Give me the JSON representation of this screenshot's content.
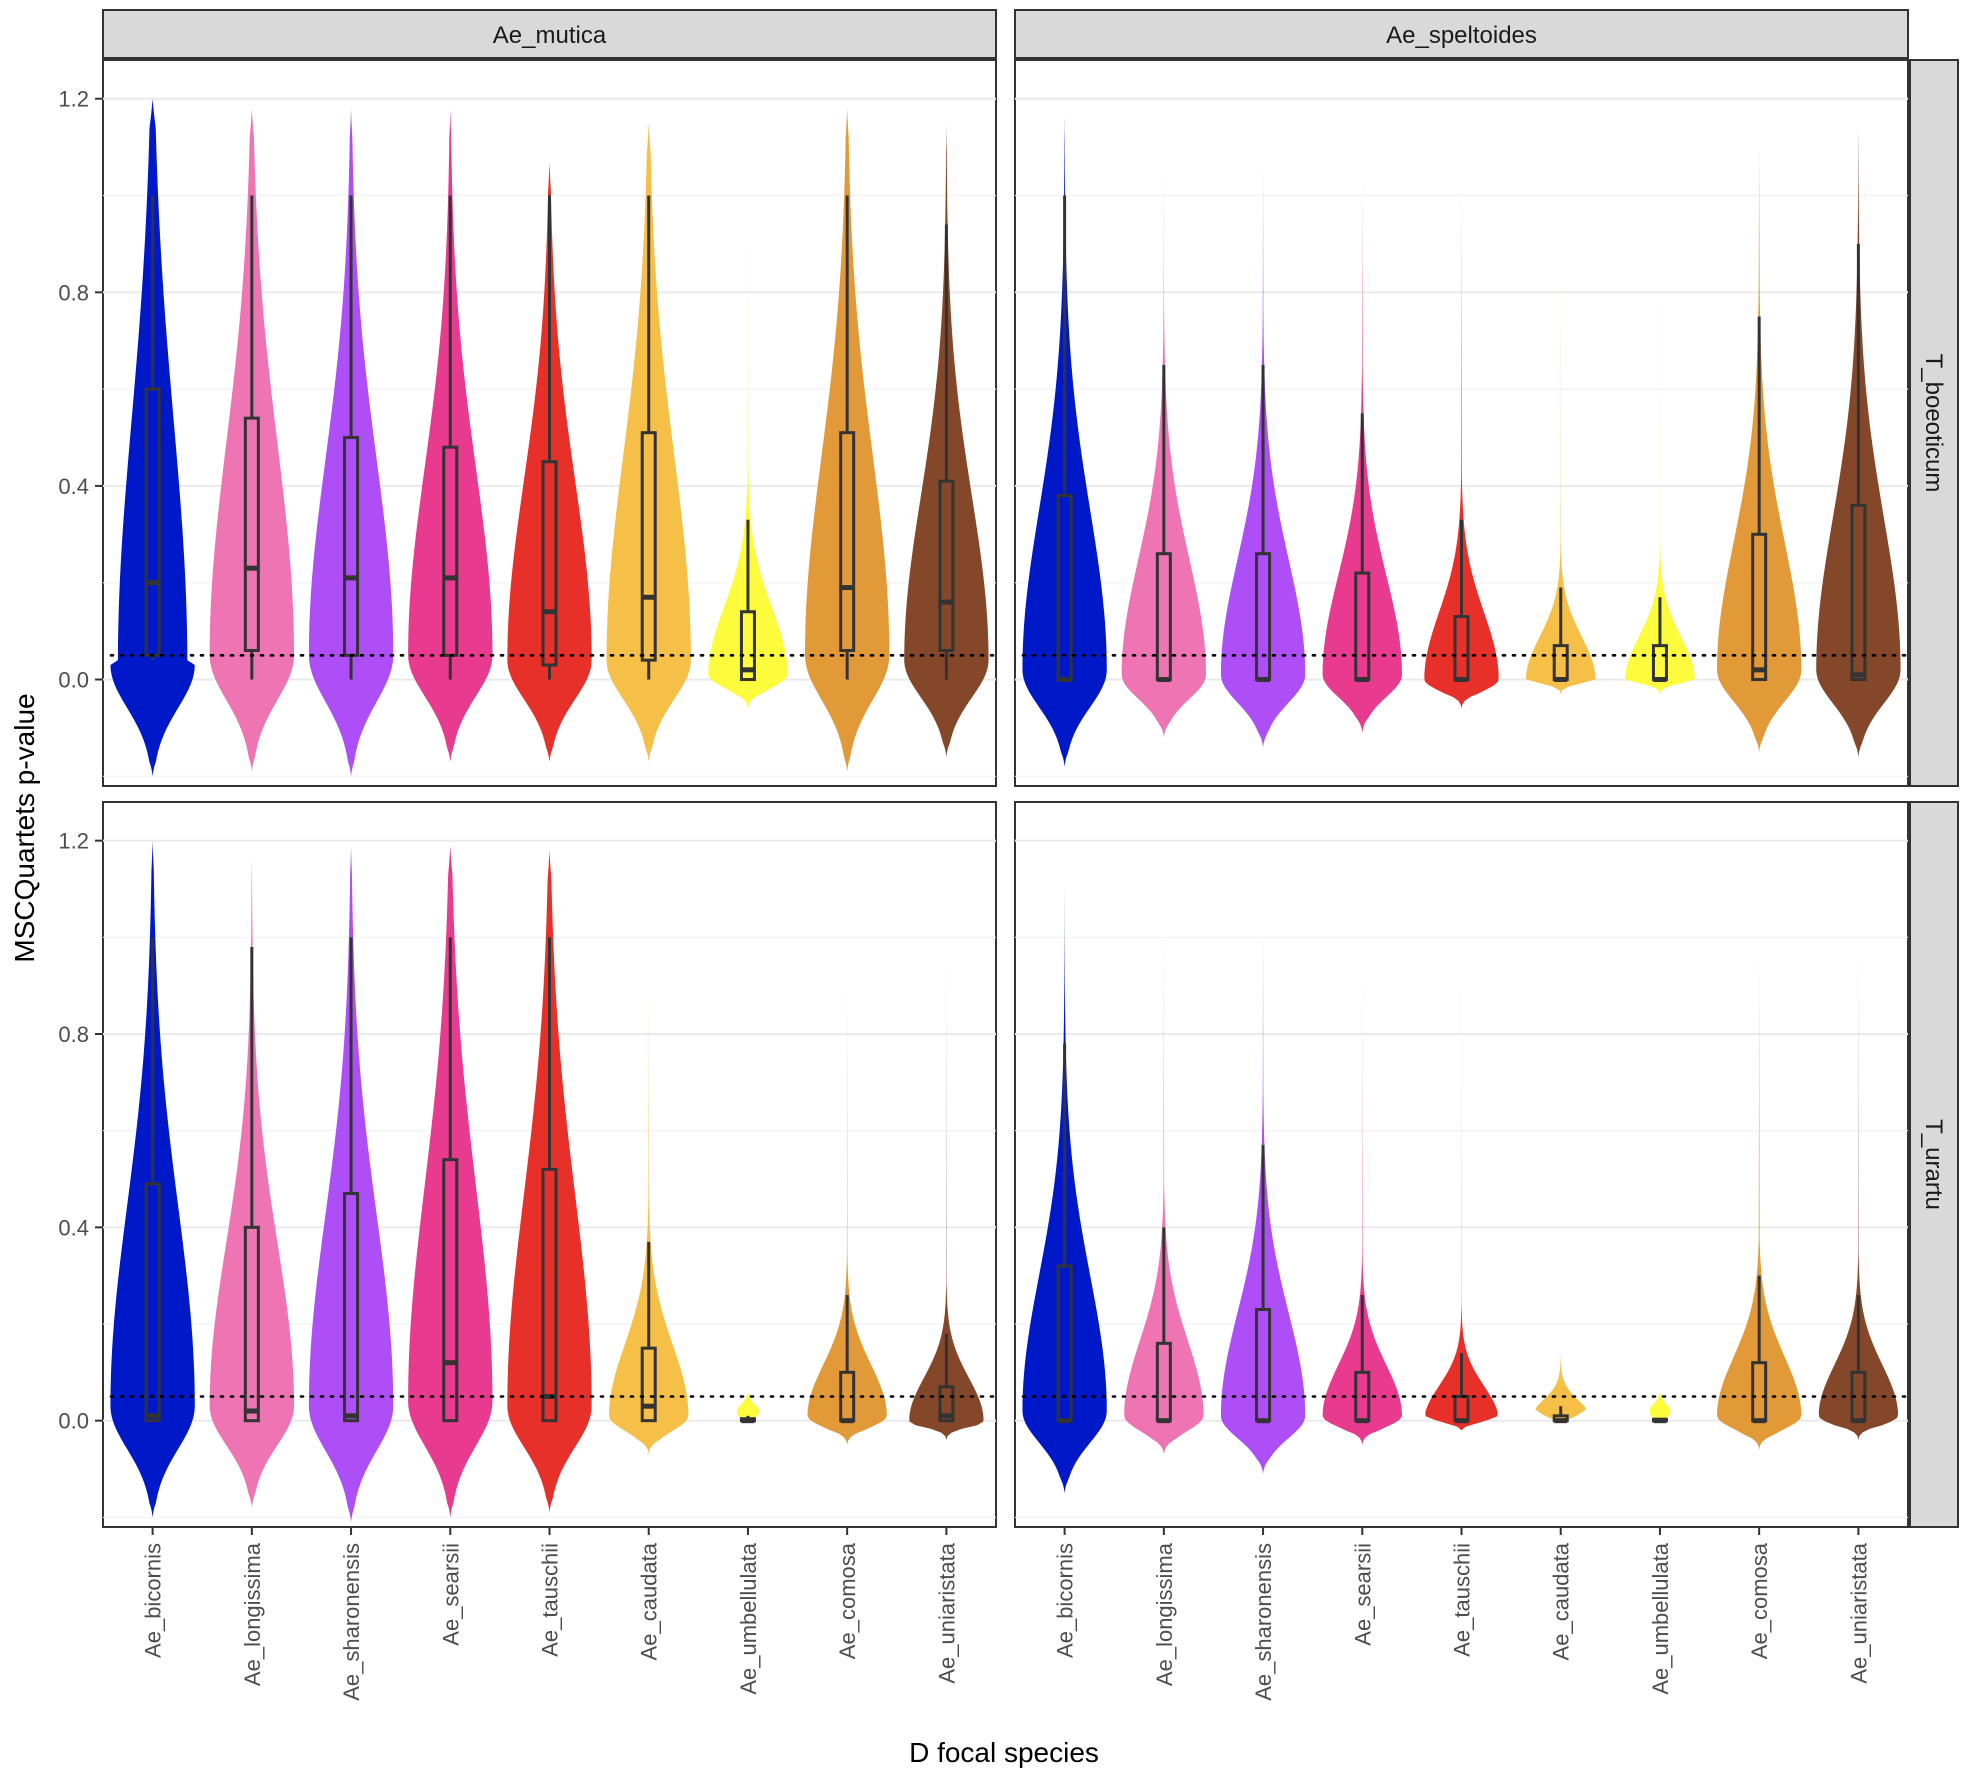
{
  "chart_data": {
    "type": "violin",
    "xlabel": "D focal species",
    "ylabel": "MSCQuartets p-value",
    "ylim": [
      -0.22,
      1.28
    ],
    "yticks": [
      0.0,
      0.4,
      0.8,
      1.2
    ],
    "ytick_labels": [
      "0.0",
      "0.4",
      "0.8",
      "1.2"
    ],
    "reference_line": 0.05,
    "grid": true,
    "categories": [
      "Ae_bicornis",
      "Ae_longissima",
      "Ae_sharonensis",
      "Ae_searsii",
      "Ae_tauschii",
      "Ae_caudata",
      "Ae_umbellulata",
      "Ae_comosa",
      "Ae_uniaristata"
    ],
    "colors": [
      "#0019c8",
      "#ee74b4",
      "#ad4ef6",
      "#e83a8e",
      "#e8302a",
      "#f6c048",
      "#fcfc3c",
      "#e29a38",
      "#84472a"
    ],
    "col_facets": [
      "Ae_mutica",
      "Ae_speltoides"
    ],
    "row_facets": [
      "T_boeoticum",
      "T_urartu"
    ],
    "panels": [
      {
        "col": "Ae_mutica",
        "row": "T_boeoticum",
        "violins": [
          {
            "min": -0.2,
            "max": 1.2,
            "mode": 0.03,
            "left_w": 0.85,
            "right_w": 0.7,
            "tail": 0.45,
            "lo": 0.04,
            "q1": 0.05,
            "median": 0.2,
            "q3": 0.6,
            "hi": 1.0
          },
          {
            "min": -0.19,
            "max": 1.18,
            "mode": 0.05,
            "left_w": 0.85,
            "right_w": 0.85,
            "tail": 0.25,
            "lo": 0.0,
            "q1": 0.06,
            "median": 0.23,
            "q3": 0.54,
            "hi": 1.0
          },
          {
            "min": -0.2,
            "max": 1.18,
            "mode": 0.05,
            "left_w": 0.85,
            "right_w": 0.85,
            "tail": 0.25,
            "lo": 0.0,
            "q1": 0.05,
            "median": 0.21,
            "q3": 0.5,
            "hi": 1.0
          },
          {
            "min": -0.17,
            "max": 1.18,
            "mode": 0.05,
            "left_w": 0.85,
            "right_w": 0.85,
            "tail": 0.2,
            "lo": 0.0,
            "q1": 0.05,
            "median": 0.21,
            "q3": 0.48,
            "hi": 1.0
          },
          {
            "min": -0.17,
            "max": 1.07,
            "mode": 0.04,
            "left_w": 0.85,
            "right_w": 0.85,
            "tail": 0.15,
            "lo": 0.0,
            "q1": 0.03,
            "median": 0.14,
            "q3": 0.45,
            "hi": 1.0
          },
          {
            "min": -0.17,
            "max": 1.15,
            "mode": 0.04,
            "left_w": 0.85,
            "right_w": 0.85,
            "tail": 0.15,
            "lo": 0.0,
            "q1": 0.04,
            "median": 0.17,
            "q3": 0.51,
            "hi": 1.0
          },
          {
            "min": -0.06,
            "max": 1.02,
            "mode": 0.01,
            "left_w": 0.8,
            "right_w": 0.8,
            "tail": 0.02,
            "lo": 0.0,
            "q1": 0.0,
            "median": 0.02,
            "q3": 0.14,
            "hi": 0.33
          },
          {
            "min": -0.19,
            "max": 1.18,
            "mode": 0.05,
            "left_w": 0.85,
            "right_w": 0.85,
            "tail": 0.25,
            "lo": 0.0,
            "q1": 0.06,
            "median": 0.19,
            "q3": 0.51,
            "hi": 1.0
          },
          {
            "min": -0.16,
            "max": 1.15,
            "mode": 0.04,
            "left_w": 0.85,
            "right_w": 0.85,
            "tail": 0.18,
            "lo": 0.0,
            "q1": 0.06,
            "median": 0.16,
            "q3": 0.41,
            "hi": 0.94
          }
        ]
      },
      {
        "col": "Ae_speltoides",
        "row": "T_boeoticum",
        "violins": [
          {
            "min": -0.18,
            "max": 1.17,
            "mode": 0.02,
            "left_w": 0.85,
            "right_w": 0.85,
            "tail": 0.06,
            "lo": 0.0,
            "q1": 0.0,
            "median": 0.0,
            "q3": 0.38,
            "hi": 1.0
          },
          {
            "min": -0.12,
            "max": 1.1,
            "mode": 0.01,
            "left_w": 0.85,
            "right_w": 0.85,
            "tail": 0.03,
            "lo": 0.0,
            "q1": 0.0,
            "median": 0.0,
            "q3": 0.26,
            "hi": 0.65
          },
          {
            "min": -0.14,
            "max": 1.1,
            "mode": 0.01,
            "left_w": 0.85,
            "right_w": 0.85,
            "tail": 0.04,
            "lo": 0.0,
            "q1": 0.0,
            "median": 0.0,
            "q3": 0.26,
            "hi": 0.65
          },
          {
            "min": -0.11,
            "max": 1.07,
            "mode": 0.01,
            "left_w": 0.8,
            "right_w": 0.8,
            "tail": 0.03,
            "lo": 0.0,
            "q1": 0.0,
            "median": 0.0,
            "q3": 0.22,
            "hi": 0.55
          },
          {
            "min": -0.06,
            "max": 1.05,
            "mode": 0.0,
            "left_w": 0.75,
            "right_w": 0.75,
            "tail": 0.02,
            "lo": 0.0,
            "q1": 0.0,
            "median": 0.0,
            "q3": 0.13,
            "hi": 0.33
          },
          {
            "min": -0.03,
            "max": 1.03,
            "mode": 0.0,
            "left_w": 0.7,
            "right_w": 0.7,
            "tail": 0.008,
            "lo": 0.0,
            "q1": 0.0,
            "median": 0.0,
            "q3": 0.07,
            "hi": 0.19
          },
          {
            "min": -0.03,
            "max": 1.02,
            "mode": 0.0,
            "left_w": 0.7,
            "right_w": 0.7,
            "tail": 0.008,
            "lo": 0.0,
            "q1": 0.0,
            "median": 0.0,
            "q3": 0.07,
            "hi": 0.17
          },
          {
            "min": -0.15,
            "max": 1.14,
            "mode": 0.02,
            "left_w": 0.85,
            "right_w": 0.85,
            "tail": 0.07,
            "lo": 0.0,
            "q1": 0.0,
            "median": 0.02,
            "q3": 0.3,
            "hi": 0.75
          },
          {
            "min": -0.16,
            "max": 1.15,
            "mode": 0.02,
            "left_w": 0.85,
            "right_w": 0.85,
            "tail": 0.08,
            "lo": 0.0,
            "q1": 0.0,
            "median": 0.01,
            "q3": 0.36,
            "hi": 0.9
          }
        ]
      },
      {
        "col": "Ae_mutica",
        "row": "T_urartu",
        "violins": [
          {
            "min": -0.2,
            "max": 1.2,
            "mode": 0.03,
            "left_w": 0.85,
            "right_w": 0.85,
            "tail": 0.12,
            "lo": 0.0,
            "q1": 0.0,
            "median": 0.01,
            "q3": 0.49,
            "hi": 1.0
          },
          {
            "min": -0.18,
            "max": 1.17,
            "mode": 0.03,
            "left_w": 0.85,
            "right_w": 0.85,
            "tail": 0.08,
            "lo": 0.0,
            "q1": 0.0,
            "median": 0.02,
            "q3": 0.4,
            "hi": 0.98
          },
          {
            "min": -0.21,
            "max": 1.19,
            "mode": 0.03,
            "left_w": 0.85,
            "right_w": 0.85,
            "tail": 0.1,
            "lo": 0.0,
            "q1": 0.0,
            "median": 0.01,
            "q3": 0.47,
            "hi": 1.0
          },
          {
            "min": -0.2,
            "max": 1.19,
            "mode": 0.04,
            "left_w": 0.85,
            "right_w": 0.85,
            "tail": 0.15,
            "lo": 0.0,
            "q1": 0.0,
            "median": 0.12,
            "q3": 0.54,
            "hi": 1.0
          },
          {
            "min": -0.19,
            "max": 1.18,
            "mode": 0.03,
            "left_w": 0.85,
            "right_w": 0.85,
            "tail": 0.15,
            "lo": 0.0,
            "q1": 0.0,
            "median": 0.05,
            "q3": 0.52,
            "hi": 1.0
          },
          {
            "min": -0.07,
            "max": 0.97,
            "mode": 0.01,
            "left_w": 0.8,
            "right_w": 0.8,
            "tail": 0.02,
            "lo": 0.0,
            "q1": 0.0,
            "median": 0.03,
            "q3": 0.15,
            "hi": 0.37
          },
          {
            "min": -0.004,
            "max": 0.06,
            "mode": 0.0,
            "left_w": 0.5,
            "right_w": 0.5,
            "tail": 0.0,
            "lo": 0.0,
            "q1": 0.0,
            "median": 0.0,
            "q3": 0.004,
            "hi": 0.01
          },
          {
            "min": -0.05,
            "max": 1.03,
            "mode": 0.01,
            "left_w": 0.8,
            "right_w": 0.8,
            "tail": 0.01,
            "lo": 0.0,
            "q1": 0.0,
            "median": 0.0,
            "q3": 0.1,
            "hi": 0.26
          },
          {
            "min": -0.04,
            "max": 1.03,
            "mode": 0.0,
            "left_w": 0.75,
            "right_w": 0.75,
            "tail": 0.008,
            "lo": 0.0,
            "q1": 0.0,
            "median": 0.01,
            "q3": 0.07,
            "hi": 0.18
          }
        ]
      },
      {
        "col": "Ae_speltoides",
        "row": "T_urartu",
        "violins": [
          {
            "min": -0.15,
            "max": 1.12,
            "mode": 0.02,
            "left_w": 0.85,
            "right_w": 0.85,
            "tail": 0.06,
            "lo": 0.0,
            "q1": 0.0,
            "median": 0.0,
            "q3": 0.32,
            "hi": 0.78
          },
          {
            "min": -0.07,
            "max": 1.06,
            "mode": 0.01,
            "left_w": 0.8,
            "right_w": 0.8,
            "tail": 0.02,
            "lo": 0.0,
            "q1": 0.0,
            "median": 0.0,
            "q3": 0.16,
            "hi": 0.4
          },
          {
            "min": -0.11,
            "max": 1.06,
            "mode": 0.01,
            "left_w": 0.85,
            "right_w": 0.85,
            "tail": 0.03,
            "lo": 0.0,
            "q1": 0.0,
            "median": 0.0,
            "q3": 0.23,
            "hi": 0.57
          },
          {
            "min": -0.05,
            "max": 0.98,
            "mode": 0.01,
            "left_w": 0.8,
            "right_w": 0.8,
            "tail": 0.01,
            "lo": 0.0,
            "q1": 0.0,
            "median": 0.0,
            "q3": 0.1,
            "hi": 0.26
          },
          {
            "min": -0.02,
            "max": 1.0,
            "mode": 0.0,
            "left_w": 0.75,
            "right_w": 0.75,
            "tail": 0.004,
            "lo": 0.0,
            "q1": 0.0,
            "median": 0.0,
            "q3": 0.05,
            "hi": 0.14
          },
          {
            "min": -0.005,
            "max": 1.0,
            "mode": 0.0,
            "left_w": 0.65,
            "right_w": 0.65,
            "tail": 0.0,
            "lo": 0.0,
            "q1": 0.0,
            "median": 0.0,
            "q3": 0.01,
            "hi": 0.03
          },
          {
            "min": -0.003,
            "max": 0.06,
            "mode": 0.0,
            "left_w": 0.5,
            "right_w": 0.5,
            "tail": 0.0,
            "lo": 0.0,
            "q1": 0.0,
            "median": 0.0,
            "q3": 0.003,
            "hi": 0.006
          },
          {
            "min": -0.06,
            "max": 1.03,
            "mode": 0.01,
            "left_w": 0.85,
            "right_w": 0.85,
            "tail": 0.02,
            "lo": 0.0,
            "q1": 0.0,
            "median": 0.0,
            "q3": 0.12,
            "hi": 0.3
          },
          {
            "min": -0.04,
            "max": 1.03,
            "mode": 0.01,
            "left_w": 0.8,
            "right_w": 0.8,
            "tail": 0.01,
            "lo": 0.0,
            "q1": 0.0,
            "median": 0.0,
            "q3": 0.1,
            "hi": 0.26
          }
        ]
      }
    ]
  }
}
